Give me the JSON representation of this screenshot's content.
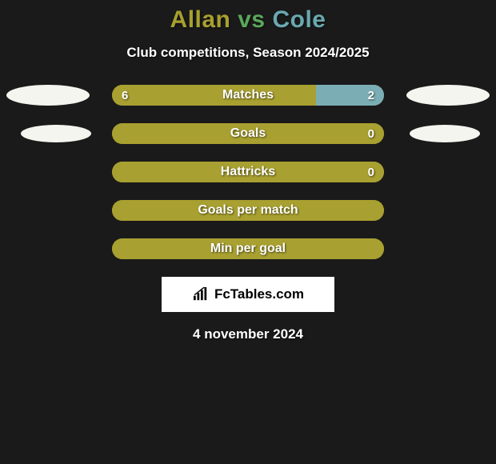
{
  "title": {
    "player1": "Allan",
    "vs": "vs",
    "player2": "Cole",
    "player1_color": "#a8a030",
    "vs_color": "#5aa85a",
    "player2_color": "#6aa8b0"
  },
  "subtitle": "Club competitions, Season 2024/2025",
  "colors": {
    "background": "#1a1a1a",
    "left_bar": "#a8a030",
    "right_bar": "#7aaeb4",
    "empty_bar": "#a8a030",
    "track_border": "#a8a030",
    "ellipse": "#f5f5f0",
    "text": "#ffffff"
  },
  "bar_style": {
    "track_width": 340,
    "track_height": 26,
    "border_radius": 13,
    "label_fontsize": 16,
    "value_fontsize": 15
  },
  "rows": [
    {
      "label": "Matches",
      "left_value": "6",
      "right_value": "2",
      "left_pct": 75,
      "right_pct": 25,
      "show_values": true,
      "show_ellipses": true,
      "ellipse_size": "large"
    },
    {
      "label": "Goals",
      "left_value": "",
      "right_value": "0",
      "left_pct": 100,
      "right_pct": 0,
      "show_values": true,
      "show_ellipses": true,
      "ellipse_size": "small"
    },
    {
      "label": "Hattricks",
      "left_value": "",
      "right_value": "0",
      "left_pct": 100,
      "right_pct": 0,
      "show_values": true,
      "show_ellipses": false
    },
    {
      "label": "Goals per match",
      "left_value": "",
      "right_value": "",
      "left_pct": 100,
      "right_pct": 0,
      "show_values": false,
      "show_ellipses": false
    },
    {
      "label": "Min per goal",
      "left_value": "",
      "right_value": "",
      "left_pct": 100,
      "right_pct": 0,
      "show_values": false,
      "show_ellipses": false
    }
  ],
  "logo": {
    "icon_name": "chart-icon",
    "text": "FcTables.com"
  },
  "date": "4 november 2024"
}
